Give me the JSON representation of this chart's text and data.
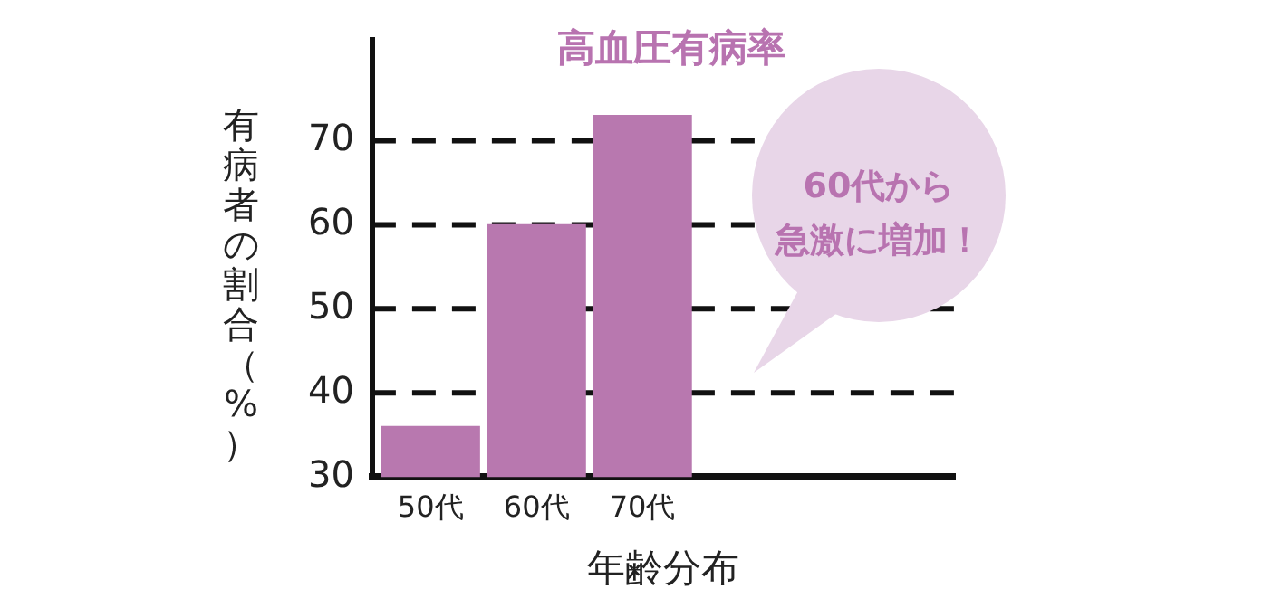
{
  "chart_data": {
    "type": "bar",
    "title": "高血圧有病率",
    "xlabel": "年齢分布",
    "ylabel": "有病者の割合（%）",
    "categories": [
      "50代",
      "60代",
      "70代"
    ],
    "values": [
      36,
      60,
      73
    ],
    "color": "#b878af",
    "ylim": [
      30,
      82
    ],
    "yticks": [
      30,
      40,
      50,
      60,
      70
    ],
    "grid": "y",
    "line_style": "dashed",
    "annotations": [
      "60代から",
      "急激に増加！"
    ]
  }
}
